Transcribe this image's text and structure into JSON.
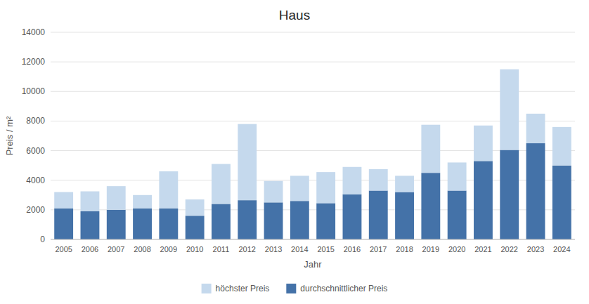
{
  "chart_data": {
    "type": "bar",
    "stacked": true,
    "grid": true,
    "legend": "bottom",
    "title": "Haus",
    "xlabel": "Jahr",
    "ylabel": "Preis / m²",
    "categories": [
      "2005",
      "2006",
      "2007",
      "2008",
      "2009",
      "2010",
      "2011",
      "2012",
      "2013",
      "2014",
      "2015",
      "2016",
      "2017",
      "2018",
      "2019",
      "2020",
      "2021",
      "2022",
      "2023",
      "2024"
    ],
    "series": [
      {
        "name": "durchschnittlicher Preis",
        "color": "#4472a8",
        "values": [
          2100,
          1900,
          2000,
          2100,
          2100,
          1600,
          2400,
          2650,
          2500,
          2600,
          2450,
          3050,
          3300,
          3200,
          4500,
          3300,
          5300,
          6050,
          6500,
          5000
        ]
      },
      {
        "name": "höchster Preis",
        "color": "#c5d9ed",
        "values": [
          1100,
          1350,
          1600,
          900,
          2500,
          1100,
          2700,
          5150,
          1450,
          1700,
          2100,
          1850,
          1450,
          1100,
          3250,
          1900,
          2400,
          5450,
          2000,
          2600
        ]
      }
    ],
    "ylim": [
      0,
      14000
    ],
    "yticks": [
      0,
      2000,
      4000,
      6000,
      8000,
      10000,
      12000,
      14000
    ]
  }
}
